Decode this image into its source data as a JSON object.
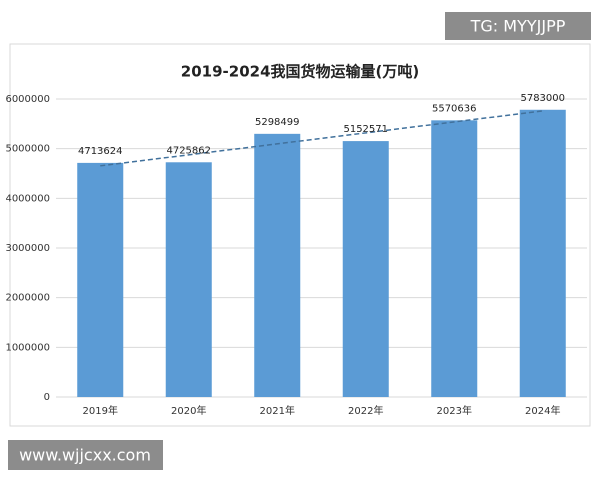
{
  "chart_data": {
    "type": "bar",
    "title": "2019-2024我国货物运输量(万吨)",
    "categories": [
      "2019年",
      "2020年",
      "2021年",
      "2022年",
      "2023年",
      "2024年"
    ],
    "values": [
      4713624,
      4725862,
      5298499,
      5152571,
      5570636,
      5783000
    ],
    "color": "#5b9bd5",
    "ylim": [
      0,
      6000000
    ],
    "yticks": [
      0,
      1000000,
      2000000,
      3000000,
      4000000,
      5000000,
      6000000
    ],
    "grid": true,
    "trendline": "linear",
    "trendline_color": "#41719c"
  },
  "overlay": {
    "top_right": "TG: MYYJJPP",
    "bottom_left": "www.wjjcxx.com"
  }
}
